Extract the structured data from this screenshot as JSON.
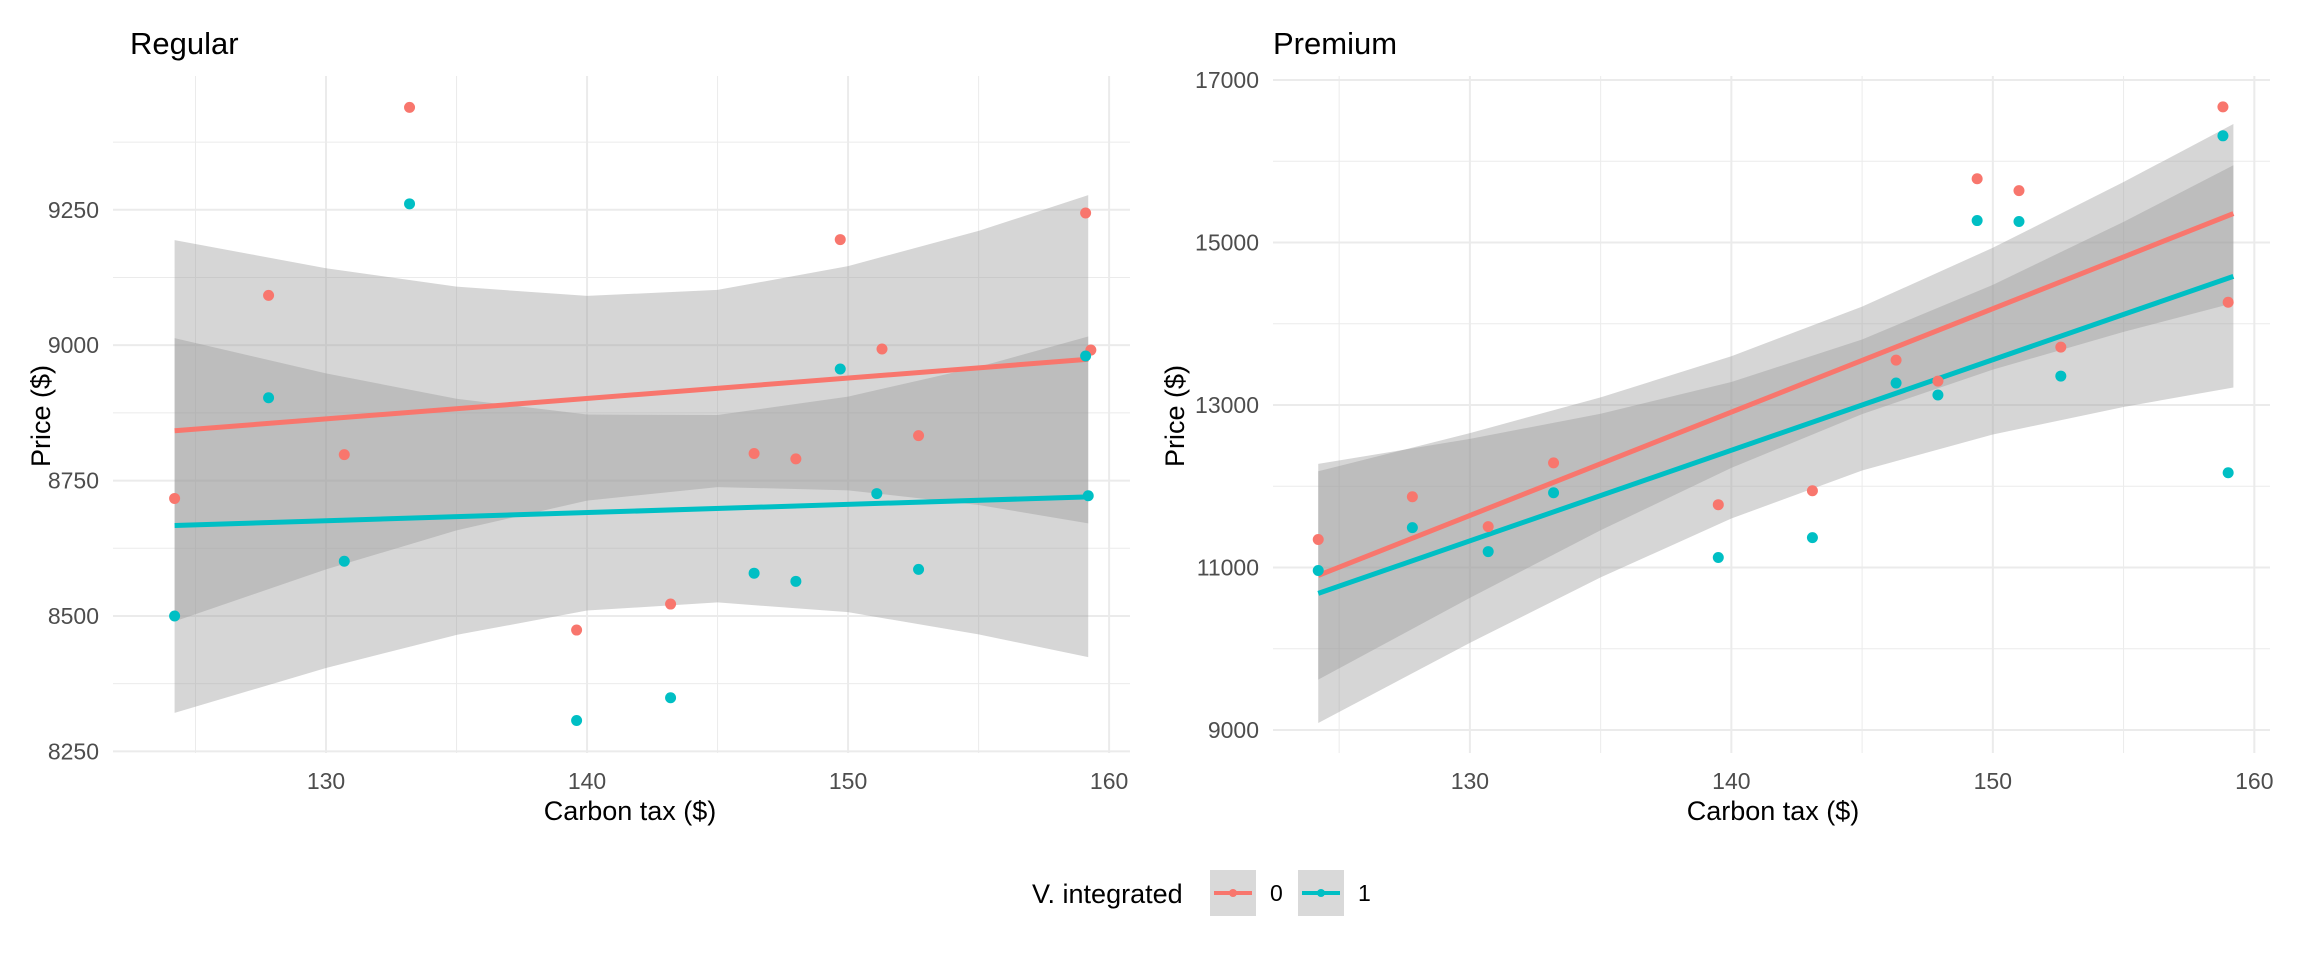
{
  "chart_data": [
    {
      "type": "scatter",
      "panel": "Regular",
      "title": "Regular",
      "xlabel": "Carbon tax ($)",
      "ylabel": "Price ($)",
      "xlim": [
        121.84,
        160.8
      ],
      "ylim": [
        8247,
        9497
      ],
      "x_ticks": [
        130,
        140,
        150,
        160
      ],
      "x_minor": [
        125,
        135,
        145,
        155
      ],
      "y_ticks": [
        8250,
        8500,
        8750,
        9000,
        9250
      ],
      "y_minor": [
        8375,
        8625,
        8875,
        9125,
        9375
      ],
      "grid": true,
      "series": [
        {
          "name": "0",
          "color": "#F8766D",
          "points": [
            [
              124.2,
              8717
            ],
            [
              127.8,
              9092
            ],
            [
              130.7,
              8798
            ],
            [
              133.2,
              9439
            ],
            [
              139.6,
              8474
            ],
            [
              143.2,
              8522
            ],
            [
              146.4,
              8800
            ],
            [
              148.0,
              8790
            ],
            [
              149.7,
              9195
            ],
            [
              151.3,
              8993
            ],
            [
              152.7,
              8833
            ],
            [
              159.1,
              9244
            ],
            [
              159.3,
              8991
            ]
          ],
          "fit_line": [
            [
              124.2,
              8842
            ],
            [
              159.2,
              8974
            ]
          ],
          "ribbon": [
            [
              124.2,
              8490,
              9194
            ],
            [
              130,
              8586,
              9142
            ],
            [
              135,
              8658,
              9108
            ],
            [
              140,
              8713,
              9091
            ],
            [
              145,
              8738,
              9102
            ],
            [
              150,
              8732,
              9146
            ],
            [
              155,
              8705,
              9211
            ],
            [
              159.2,
              8671,
              9277
            ]
          ]
        },
        {
          "name": "1",
          "color": "#00BFC4",
          "points": [
            [
              124.2,
              8500
            ],
            [
              127.8,
              8903
            ],
            [
              130.7,
              8601
            ],
            [
              133.2,
              9261
            ],
            [
              139.6,
              8307
            ],
            [
              143.2,
              8349
            ],
            [
              146.4,
              8579
            ],
            [
              148.0,
              8564
            ],
            [
              149.7,
              8956
            ],
            [
              151.1,
              8726
            ],
            [
              152.7,
              8586
            ],
            [
              159.1,
              8980
            ],
            [
              159.2,
              8722
            ]
          ],
          "fit_line": [
            [
              124.2,
              8667
            ],
            [
              159.2,
              8720
            ]
          ],
          "ribbon": [
            [
              124.2,
              8321,
              9013
            ],
            [
              130,
              8404,
              8948
            ],
            [
              135,
              8465,
              8901
            ],
            [
              140,
              8510,
              8872
            ],
            [
              145,
              8525,
              8871
            ],
            [
              150,
              8507,
              8905
            ],
            [
              155,
              8466,
              8960
            ],
            [
              159.2,
              8424,
              9016
            ]
          ]
        }
      ]
    },
    {
      "type": "scatter",
      "panel": "Premium",
      "title": "Premium",
      "xlabel": "Carbon tax ($)",
      "ylabel": "Price ($)",
      "xlim": [
        122.47,
        160.6
      ],
      "ylim": [
        8717,
        17049
      ],
      "x_ticks": [
        130,
        140,
        150,
        160
      ],
      "x_minor": [
        125,
        135,
        145,
        155
      ],
      "y_ticks": [
        9000,
        11000,
        13000,
        15000,
        17000
      ],
      "y_minor": [
        10000,
        12000,
        14000,
        16000
      ],
      "grid": true,
      "series": [
        {
          "name": "0",
          "color": "#F8766D",
          "points": [
            [
              124.2,
              11344
            ],
            [
              127.8,
              11871
            ],
            [
              130.7,
              11503
            ],
            [
              133.2,
              12288
            ],
            [
              139.5,
              11773
            ],
            [
              143.1,
              11945
            ],
            [
              146.3,
              13552
            ],
            [
              147.9,
              13294
            ],
            [
              149.4,
              15785
            ],
            [
              151.0,
              15638
            ],
            [
              152.6,
              13712
            ],
            [
              158.8,
              16669
            ],
            [
              159.0,
              14264
            ]
          ],
          "fit_line": [
            [
              124.2,
              10902
            ],
            [
              159.2,
              15356
            ]
          ],
          "ribbon": [
            [
              124.2,
              9620,
              12184
            ],
            [
              130,
              10626,
              12654
            ],
            [
              135,
              11458,
              13094
            ],
            [
              140,
              12226,
              13600
            ],
            [
              145,
              12888,
              14210
            ],
            [
              150,
              13435,
              14935
            ],
            [
              155,
              13900,
              15744
            ],
            [
              159.2,
              14254,
              16458
            ]
          ]
        },
        {
          "name": "1",
          "color": "#00BFC4",
          "points": [
            [
              124.2,
              10963
            ],
            [
              127.8,
              11491
            ],
            [
              130.7,
              11196
            ],
            [
              133.2,
              11920
            ],
            [
              139.5,
              11123
            ],
            [
              143.1,
              11368
            ],
            [
              146.3,
              13270
            ],
            [
              147.9,
              13123
            ],
            [
              149.4,
              15270
            ],
            [
              151.0,
              15258
            ],
            [
              152.6,
              13356
            ],
            [
              158.8,
              16313
            ],
            [
              159.0,
              12166
            ]
          ],
          "fit_line": [
            [
              124.2,
              10681
            ],
            [
              159.2,
              14583
            ]
          ],
          "ribbon": [
            [
              124.2,
              9086,
              12276
            ],
            [
              130,
              10073,
              12583
            ],
            [
              135,
              10878,
              12892
            ],
            [
              140,
              11603,
              13283
            ],
            [
              145,
              12194,
              13806
            ],
            [
              150,
              12637,
              14479
            ],
            [
              155,
              12976,
              15254
            ],
            [
              159.2,
              13216,
              15950
            ]
          ]
        }
      ]
    }
  ],
  "legend": {
    "title": "V. integrated",
    "position": "bottom",
    "items": [
      {
        "label": "0",
        "color": "#F8766D"
      },
      {
        "label": "1",
        "color": "#00BFC4"
      }
    ]
  },
  "style": {
    "ribbon_color": "#999999",
    "grid_color": "#EBEBEB",
    "legend_key_bg": "#D9D9D9"
  }
}
